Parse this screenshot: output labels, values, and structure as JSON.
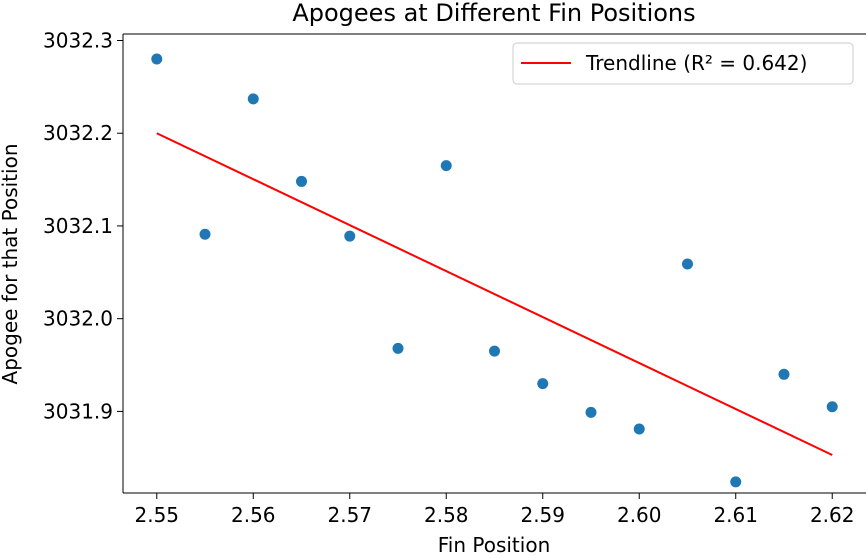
{
  "chart_data": {
    "type": "scatter",
    "title": "Apogees at Different Fin Positions",
    "xlabel": "Fin Position",
    "ylabel": "Apogee for that Position",
    "xlim": [
      2.5465,
      2.6235
    ],
    "ylim": [
      3031.812,
      3032.307
    ],
    "xticks": [
      "2.55",
      "2.56",
      "2.57",
      "2.58",
      "2.59",
      "2.60",
      "2.61",
      "2.62"
    ],
    "xtick_values": [
      2.55,
      2.56,
      2.57,
      2.58,
      2.59,
      2.6,
      2.61,
      2.62
    ],
    "yticks": [
      "3031.9",
      "3032.0",
      "3032.1",
      "3032.2",
      "3032.3"
    ],
    "ytick_values": [
      3031.9,
      3032.0,
      3032.1,
      3032.2,
      3032.3
    ],
    "grid": false,
    "legend_position": "top-right",
    "series": [
      {
        "type": "scatter",
        "color": "#1f77b4",
        "points": [
          {
            "x": 2.55,
            "y": 3032.28
          },
          {
            "x": 2.555,
            "y": 3032.091
          },
          {
            "x": 2.56,
            "y": 3032.237
          },
          {
            "x": 2.565,
            "y": 3032.148
          },
          {
            "x": 2.57,
            "y": 3032.089
          },
          {
            "x": 2.575,
            "y": 3031.968
          },
          {
            "x": 2.58,
            "y": 3032.165
          },
          {
            "x": 2.585,
            "y": 3031.965
          },
          {
            "x": 2.59,
            "y": 3031.93
          },
          {
            "x": 2.595,
            "y": 3031.899
          },
          {
            "x": 2.6,
            "y": 3031.881
          },
          {
            "x": 2.605,
            "y": 3032.059
          },
          {
            "x": 2.61,
            "y": 3031.824
          },
          {
            "x": 2.615,
            "y": 3031.94
          },
          {
            "x": 2.62,
            "y": 3031.905
          }
        ]
      },
      {
        "type": "line",
        "name": "Trendline (R² = 0.642)",
        "color": "#ff0000",
        "points": [
          {
            "x": 2.55,
            "y": 3032.2
          },
          {
            "x": 2.62,
            "y": 3031.853
          }
        ]
      }
    ]
  }
}
